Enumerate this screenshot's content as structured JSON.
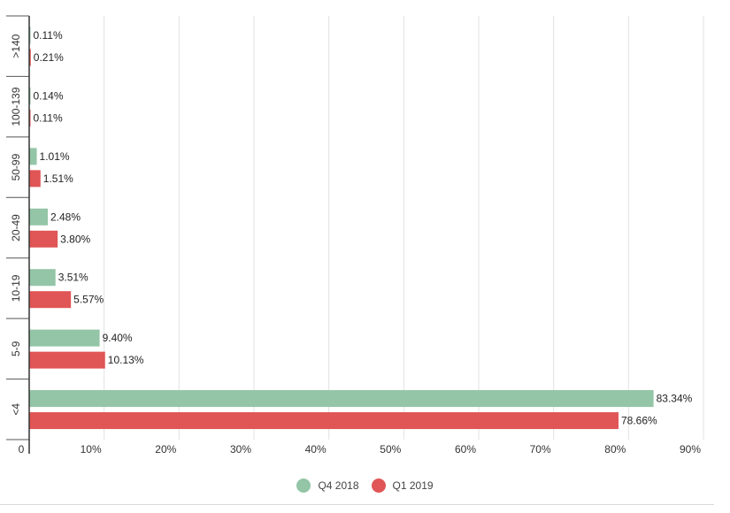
{
  "chart_data": {
    "type": "bar",
    "orientation": "horizontal",
    "categories": [
      ">140",
      "100-139",
      "50-99",
      "20-49",
      "10-19",
      "5-9",
      "<4"
    ],
    "series": [
      {
        "name": "Q4 2018",
        "color": "#93c5a6",
        "values": [
          0.11,
          0.14,
          1.01,
          2.48,
          3.51,
          9.4,
          83.34
        ],
        "labels": [
          "0.11%",
          "0.14%",
          "1.01%",
          "2.48%",
          "3.51%",
          "9.40%",
          "83.34%"
        ]
      },
      {
        "name": "Q1 2019",
        "color": "#e05555",
        "values": [
          0.21,
          0.11,
          1.51,
          3.8,
          5.57,
          10.13,
          78.66
        ],
        "labels": [
          "0.21%",
          "0.11%",
          "1.51%",
          "3.80%",
          "5.57%",
          "10.13%",
          "78.66%"
        ]
      }
    ],
    "xlim": [
      0,
      90
    ],
    "xticks": [
      0,
      10,
      20,
      30,
      40,
      50,
      60,
      70,
      80,
      90
    ],
    "xtick_labels": [
      "0",
      "10%",
      "20%",
      "30%",
      "40%",
      "50%",
      "60%",
      "70%",
      "80%",
      "90%"
    ],
    "grid": true,
    "legend_position": "bottom-center"
  }
}
